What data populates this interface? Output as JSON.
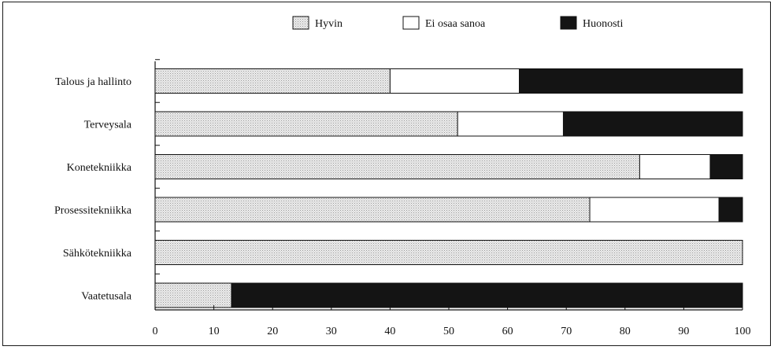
{
  "chart_data": {
    "type": "bar",
    "orientation": "horizontal",
    "stacked": true,
    "title": "",
    "xlabel": "",
    "ylabel": "",
    "xlim": [
      0,
      100
    ],
    "xticks": [
      "0",
      "10",
      "20",
      "30",
      "40",
      "50",
      "60",
      "70",
      "80",
      "90",
      "100"
    ],
    "categories": [
      "Talous ja hallinto",
      "Terveysala",
      "Konetekniikka",
      "Prosessitekniikka",
      "Sähkötekniikka",
      "Vaatetusala"
    ],
    "series": [
      {
        "name": "Hyvin",
        "color": "#e6e6e6",
        "values": [
          40,
          51.5,
          82.5,
          74,
          100,
          13
        ]
      },
      {
        "name": "Ei osaa sanoa",
        "color": "#ffffff",
        "values": [
          22,
          18,
          12,
          22,
          0,
          0
        ]
      },
      {
        "name": "Huonosti",
        "color": "#141414",
        "values": [
          38,
          30.5,
          5.5,
          4,
          0,
          87
        ]
      }
    ],
    "legend_position": "top",
    "grid": false
  }
}
